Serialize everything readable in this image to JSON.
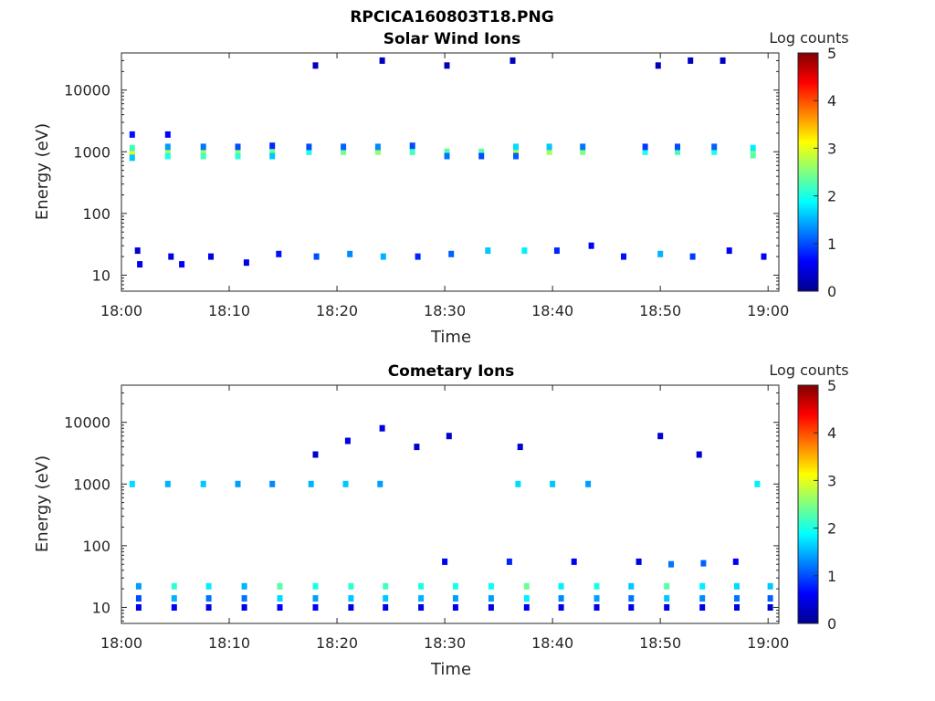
{
  "figure_title": "RPCICA160803T18.PNG",
  "chart_data": [
    {
      "type": "heatmap",
      "title": "Solar Wind Ions",
      "xlabel": "Time",
      "ylabel": "Energy (eV)",
      "xlim": [
        "18:00",
        "19:01"
      ],
      "x_ticks": [
        "18:00",
        "18:10",
        "18:20",
        "18:30",
        "18:40",
        "18:50",
        "19:00"
      ],
      "y_scale": "log",
      "ylim": [
        5.5,
        40000
      ],
      "y_ticks": [
        10,
        100,
        1000,
        10000
      ],
      "y_tick_labels": [
        "10",
        "100",
        "1000",
        "10000"
      ],
      "colorbar": {
        "label": "Log counts",
        "range": [
          0,
          5
        ],
        "ticks": [
          "0",
          "1",
          "2",
          "3",
          "4",
          "5"
        ]
      },
      "cells": [
        {
          "t": 1.0,
          "e": 1000,
          "v": 2.9
        },
        {
          "t": 1.0,
          "e": 900,
          "v": 3.0
        },
        {
          "t": 1.0,
          "e": 1150,
          "v": 2.2
        },
        {
          "t": 1.0,
          "e": 800,
          "v": 1.6
        },
        {
          "t": 1.0,
          "e": 1900,
          "v": 0.7
        },
        {
          "t": 4.3,
          "e": 1000,
          "v": 2.8
        },
        {
          "t": 4.3,
          "e": 850,
          "v": 2.0
        },
        {
          "t": 4.3,
          "e": 1200,
          "v": 1.4
        },
        {
          "t": 4.3,
          "e": 1900,
          "v": 0.6
        },
        {
          "t": 7.6,
          "e": 1000,
          "v": 2.7
        },
        {
          "t": 7.6,
          "e": 850,
          "v": 2.2
        },
        {
          "t": 7.6,
          "e": 1200,
          "v": 1.2
        },
        {
          "t": 10.8,
          "e": 1000,
          "v": 2.6
        },
        {
          "t": 10.8,
          "e": 850,
          "v": 2.1
        },
        {
          "t": 10.8,
          "e": 1200,
          "v": 1.0
        },
        {
          "t": 14.0,
          "e": 1000,
          "v": 2.4
        },
        {
          "t": 14.0,
          "e": 850,
          "v": 1.6
        },
        {
          "t": 14.0,
          "e": 1250,
          "v": 0.8
        },
        {
          "t": 17.4,
          "e": 1000,
          "v": 2.0
        },
        {
          "t": 17.4,
          "e": 1200,
          "v": 1.0
        },
        {
          "t": 20.6,
          "e": 1000,
          "v": 2.4
        },
        {
          "t": 20.6,
          "e": 1200,
          "v": 1.1
        },
        {
          "t": 23.8,
          "e": 1000,
          "v": 2.6
        },
        {
          "t": 23.8,
          "e": 1200,
          "v": 1.3
        },
        {
          "t": 27.0,
          "e": 1000,
          "v": 2.2
        },
        {
          "t": 27.0,
          "e": 1250,
          "v": 1.0
        },
        {
          "t": 30.2,
          "e": 1000,
          "v": 2.3
        },
        {
          "t": 30.2,
          "e": 850,
          "v": 1.2
        },
        {
          "t": 33.4,
          "e": 1000,
          "v": 2.3
        },
        {
          "t": 33.4,
          "e": 850,
          "v": 1.0
        },
        {
          "t": 36.6,
          "e": 1000,
          "v": 2.8
        },
        {
          "t": 36.6,
          "e": 1200,
          "v": 1.7
        },
        {
          "t": 36.6,
          "e": 850,
          "v": 1.1
        },
        {
          "t": 39.7,
          "e": 1000,
          "v": 2.7
        },
        {
          "t": 39.7,
          "e": 1200,
          "v": 1.6
        },
        {
          "t": 42.8,
          "e": 1000,
          "v": 2.5
        },
        {
          "t": 42.8,
          "e": 1200,
          "v": 1.2
        },
        {
          "t": 48.6,
          "e": 1000,
          "v": 2.0
        },
        {
          "t": 48.6,
          "e": 1200,
          "v": 0.9
        },
        {
          "t": 51.6,
          "e": 1000,
          "v": 2.2
        },
        {
          "t": 51.6,
          "e": 1200,
          "v": 1.0
        },
        {
          "t": 55.0,
          "e": 1000,
          "v": 2.0
        },
        {
          "t": 55.0,
          "e": 1200,
          "v": 1.1
        },
        {
          "t": 58.6,
          "e": 1000,
          "v": 2.9
        },
        {
          "t": 58.6,
          "e": 880,
          "v": 2.3
        },
        {
          "t": 58.6,
          "e": 1150,
          "v": 1.8
        },
        {
          "t": 1.5,
          "e": 25,
          "v": 0.4
        },
        {
          "t": 1.7,
          "e": 15,
          "v": 0.5
        },
        {
          "t": 4.6,
          "e": 20,
          "v": 0.5
        },
        {
          "t": 5.6,
          "e": 15,
          "v": 0.6
        },
        {
          "t": 8.3,
          "e": 20,
          "v": 0.5
        },
        {
          "t": 11.6,
          "e": 16,
          "v": 0.5
        },
        {
          "t": 14.6,
          "e": 22,
          "v": 0.7
        },
        {
          "t": 18.1,
          "e": 20,
          "v": 1.0
        },
        {
          "t": 21.2,
          "e": 22,
          "v": 1.3
        },
        {
          "t": 24.3,
          "e": 20,
          "v": 1.5
        },
        {
          "t": 27.5,
          "e": 20,
          "v": 0.8
        },
        {
          "t": 30.6,
          "e": 22,
          "v": 1.1
        },
        {
          "t": 34.0,
          "e": 25,
          "v": 1.6
        },
        {
          "t": 37.4,
          "e": 25,
          "v": 1.8
        },
        {
          "t": 40.4,
          "e": 25,
          "v": 0.8
        },
        {
          "t": 43.6,
          "e": 30,
          "v": 0.6
        },
        {
          "t": 46.6,
          "e": 20,
          "v": 0.7
        },
        {
          "t": 50.0,
          "e": 22,
          "v": 1.5
        },
        {
          "t": 53.0,
          "e": 20,
          "v": 0.9
        },
        {
          "t": 56.4,
          "e": 25,
          "v": 0.6
        },
        {
          "t": 59.6,
          "e": 20,
          "v": 0.6
        },
        {
          "t": 18.0,
          "e": 25000,
          "v": 0.3
        },
        {
          "t": 24.2,
          "e": 30000,
          "v": 0.3
        },
        {
          "t": 30.2,
          "e": 25000,
          "v": 0.3
        },
        {
          "t": 36.3,
          "e": 30000,
          "v": 0.3
        },
        {
          "t": 49.8,
          "e": 25000,
          "v": 0.3
        },
        {
          "t": 52.8,
          "e": 30000,
          "v": 0.3
        },
        {
          "t": 55.8,
          "e": 30000,
          "v": 0.3
        }
      ]
    },
    {
      "type": "heatmap",
      "title": "Cometary Ions",
      "xlabel": "Time",
      "ylabel": "Energy (eV)",
      "xlim": [
        "18:00",
        "19:01"
      ],
      "x_ticks": [
        "18:00",
        "18:10",
        "18:20",
        "18:30",
        "18:40",
        "18:50",
        "19:00"
      ],
      "y_scale": "log",
      "ylim": [
        5.5,
        40000
      ],
      "y_ticks": [
        10,
        100,
        1000,
        10000
      ],
      "y_tick_labels": [
        "10",
        "100",
        "1000",
        "10000"
      ],
      "colorbar": {
        "label": "Log counts",
        "range": [
          0,
          5
        ],
        "ticks": [
          "0",
          "1",
          "2",
          "3",
          "4",
          "5"
        ]
      },
      "cells": [
        {
          "t": 1.0,
          "e": 1000,
          "v": 1.7
        },
        {
          "t": 4.3,
          "e": 1000,
          "v": 1.5
        },
        {
          "t": 7.6,
          "e": 1000,
          "v": 1.6
        },
        {
          "t": 10.8,
          "e": 1000,
          "v": 1.4
        },
        {
          "t": 14.0,
          "e": 1000,
          "v": 1.3
        },
        {
          "t": 17.6,
          "e": 1000,
          "v": 1.5
        },
        {
          "t": 20.8,
          "e": 1000,
          "v": 1.6
        },
        {
          "t": 24.0,
          "e": 1000,
          "v": 1.4
        },
        {
          "t": 36.8,
          "e": 1000,
          "v": 1.7
        },
        {
          "t": 40.0,
          "e": 1000,
          "v": 1.6
        },
        {
          "t": 43.3,
          "e": 1000,
          "v": 1.4
        },
        {
          "t": 59.0,
          "e": 1000,
          "v": 1.8
        },
        {
          "t": 1.6,
          "e": 22,
          "v": 1.4
        },
        {
          "t": 1.6,
          "e": 14,
          "v": 1.0
        },
        {
          "t": 1.6,
          "e": 10,
          "v": 0.5
        },
        {
          "t": 4.9,
          "e": 22,
          "v": 2.1
        },
        {
          "t": 4.9,
          "e": 14,
          "v": 1.5
        },
        {
          "t": 4.9,
          "e": 10,
          "v": 0.6
        },
        {
          "t": 8.1,
          "e": 22,
          "v": 1.8
        },
        {
          "t": 8.1,
          "e": 14,
          "v": 1.2
        },
        {
          "t": 8.1,
          "e": 10,
          "v": 0.5
        },
        {
          "t": 11.4,
          "e": 22,
          "v": 1.5
        },
        {
          "t": 11.4,
          "e": 14,
          "v": 1.2
        },
        {
          "t": 11.4,
          "e": 10,
          "v": 0.5
        },
        {
          "t": 14.7,
          "e": 22,
          "v": 2.3
        },
        {
          "t": 14.7,
          "e": 14,
          "v": 1.7
        },
        {
          "t": 14.7,
          "e": 10,
          "v": 0.6
        },
        {
          "t": 18.0,
          "e": 22,
          "v": 2.0
        },
        {
          "t": 18.0,
          "e": 14,
          "v": 1.4
        },
        {
          "t": 18.0,
          "e": 10,
          "v": 0.6
        },
        {
          "t": 21.3,
          "e": 22,
          "v": 2.1
        },
        {
          "t": 21.3,
          "e": 14,
          "v": 1.6
        },
        {
          "t": 21.3,
          "e": 10,
          "v": 0.5
        },
        {
          "t": 24.5,
          "e": 22,
          "v": 2.2
        },
        {
          "t": 24.5,
          "e": 14,
          "v": 1.6
        },
        {
          "t": 24.5,
          "e": 10,
          "v": 0.5
        },
        {
          "t": 27.8,
          "e": 22,
          "v": 2.0
        },
        {
          "t": 27.8,
          "e": 14,
          "v": 1.5
        },
        {
          "t": 27.8,
          "e": 10,
          "v": 0.5
        },
        {
          "t": 31.0,
          "e": 22,
          "v": 2.0
        },
        {
          "t": 31.0,
          "e": 14,
          "v": 1.4
        },
        {
          "t": 31.0,
          "e": 10,
          "v": 0.5
        },
        {
          "t": 34.3,
          "e": 22,
          "v": 1.9
        },
        {
          "t": 34.3,
          "e": 14,
          "v": 1.4
        },
        {
          "t": 34.3,
          "e": 10,
          "v": 0.5
        },
        {
          "t": 37.6,
          "e": 22,
          "v": 2.4
        },
        {
          "t": 37.6,
          "e": 14,
          "v": 1.8
        },
        {
          "t": 37.6,
          "e": 10,
          "v": 0.6
        },
        {
          "t": 40.8,
          "e": 22,
          "v": 1.8
        },
        {
          "t": 40.8,
          "e": 14,
          "v": 1.3
        },
        {
          "t": 40.8,
          "e": 10,
          "v": 0.5
        },
        {
          "t": 44.1,
          "e": 22,
          "v": 2.0
        },
        {
          "t": 44.1,
          "e": 14,
          "v": 1.4
        },
        {
          "t": 44.1,
          "e": 10,
          "v": 0.5
        },
        {
          "t": 47.3,
          "e": 22,
          "v": 1.6
        },
        {
          "t": 47.3,
          "e": 14,
          "v": 1.2
        },
        {
          "t": 47.3,
          "e": 10,
          "v": 0.5
        },
        {
          "t": 50.6,
          "e": 22,
          "v": 2.3
        },
        {
          "t": 50.6,
          "e": 14,
          "v": 1.6
        },
        {
          "t": 50.6,
          "e": 10,
          "v": 0.5
        },
        {
          "t": 53.9,
          "e": 22,
          "v": 1.8
        },
        {
          "t": 53.9,
          "e": 14,
          "v": 1.3
        },
        {
          "t": 53.9,
          "e": 10,
          "v": 0.5
        },
        {
          "t": 57.1,
          "e": 22,
          "v": 1.7
        },
        {
          "t": 57.1,
          "e": 14,
          "v": 1.2
        },
        {
          "t": 57.1,
          "e": 10,
          "v": 0.5
        },
        {
          "t": 60.2,
          "e": 22,
          "v": 1.6
        },
        {
          "t": 60.2,
          "e": 14,
          "v": 1.1
        },
        {
          "t": 60.2,
          "e": 10,
          "v": 0.4
        },
        {
          "t": 30.0,
          "e": 55,
          "v": 0.6
        },
        {
          "t": 36.0,
          "e": 55,
          "v": 0.8
        },
        {
          "t": 42.0,
          "e": 55,
          "v": 0.6
        },
        {
          "t": 48.0,
          "e": 55,
          "v": 0.5
        },
        {
          "t": 51.0,
          "e": 50,
          "v": 1.2
        },
        {
          "t": 54.0,
          "e": 52,
          "v": 1.1
        },
        {
          "t": 57.0,
          "e": 55,
          "v": 0.6
        },
        {
          "t": 18.0,
          "e": 3000,
          "v": 0.4
        },
        {
          "t": 21.0,
          "e": 5000,
          "v": 0.5
        },
        {
          "t": 24.2,
          "e": 8000,
          "v": 0.5
        },
        {
          "t": 27.4,
          "e": 4000,
          "v": 0.4
        },
        {
          "t": 30.4,
          "e": 6000,
          "v": 0.4
        },
        {
          "t": 37.0,
          "e": 4000,
          "v": 0.4
        },
        {
          "t": 50.0,
          "e": 6000,
          "v": 0.4
        },
        {
          "t": 53.6,
          "e": 3000,
          "v": 0.4
        }
      ]
    }
  ]
}
